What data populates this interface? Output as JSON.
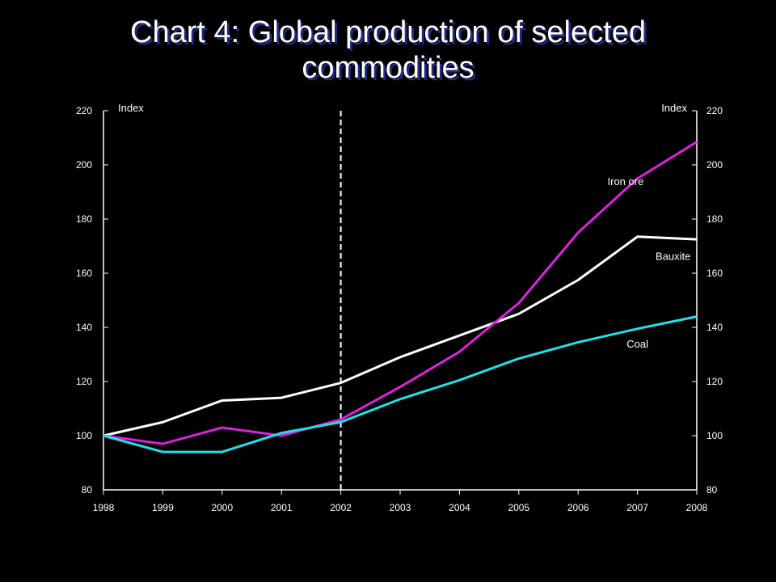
{
  "title_lines": [
    "Chart 4: Global production of selected",
    "commodities"
  ],
  "chart_data": {
    "type": "line",
    "title": "Chart 4: Global production of selected commodities",
    "left_axis_unit": "Index",
    "right_axis_unit": "Index",
    "x": [
      1998,
      1999,
      2000,
      2001,
      2002,
      2003,
      2004,
      2005,
      2006,
      2007,
      2008
    ],
    "x_tick_labels": [
      "1998",
      "1999",
      "2000",
      "2001",
      "2002",
      "2003",
      "2004",
      "2005",
      "2006",
      "2007",
      "2008"
    ],
    "ylim": [
      80,
      220
    ],
    "y_ticks": [
      80,
      100,
      120,
      140,
      160,
      180,
      200,
      220
    ],
    "y_tick_labels": [
      "80",
      "100",
      "120",
      "140",
      "160",
      "180",
      "200",
      "220"
    ],
    "vertical_marker_x": 2002,
    "grid": false,
    "series": [
      {
        "name": "Bauxite",
        "color": "#ffffff",
        "values": [
          100,
          105,
          113,
          114,
          119.5,
          129,
          137,
          145,
          157.5,
          173.5,
          172.5
        ]
      },
      {
        "name": "Iron ore",
        "color": "#e020e0",
        "values": [
          100,
          97,
          103,
          100,
          106,
          118,
          131,
          149,
          175,
          195,
          208.5
        ]
      },
      {
        "name": "Coal",
        "color": "#20e0e8",
        "values": [
          100,
          94,
          94,
          101,
          105,
          113.5,
          120.5,
          128.5,
          134.5,
          139.5,
          144
        ]
      }
    ]
  }
}
